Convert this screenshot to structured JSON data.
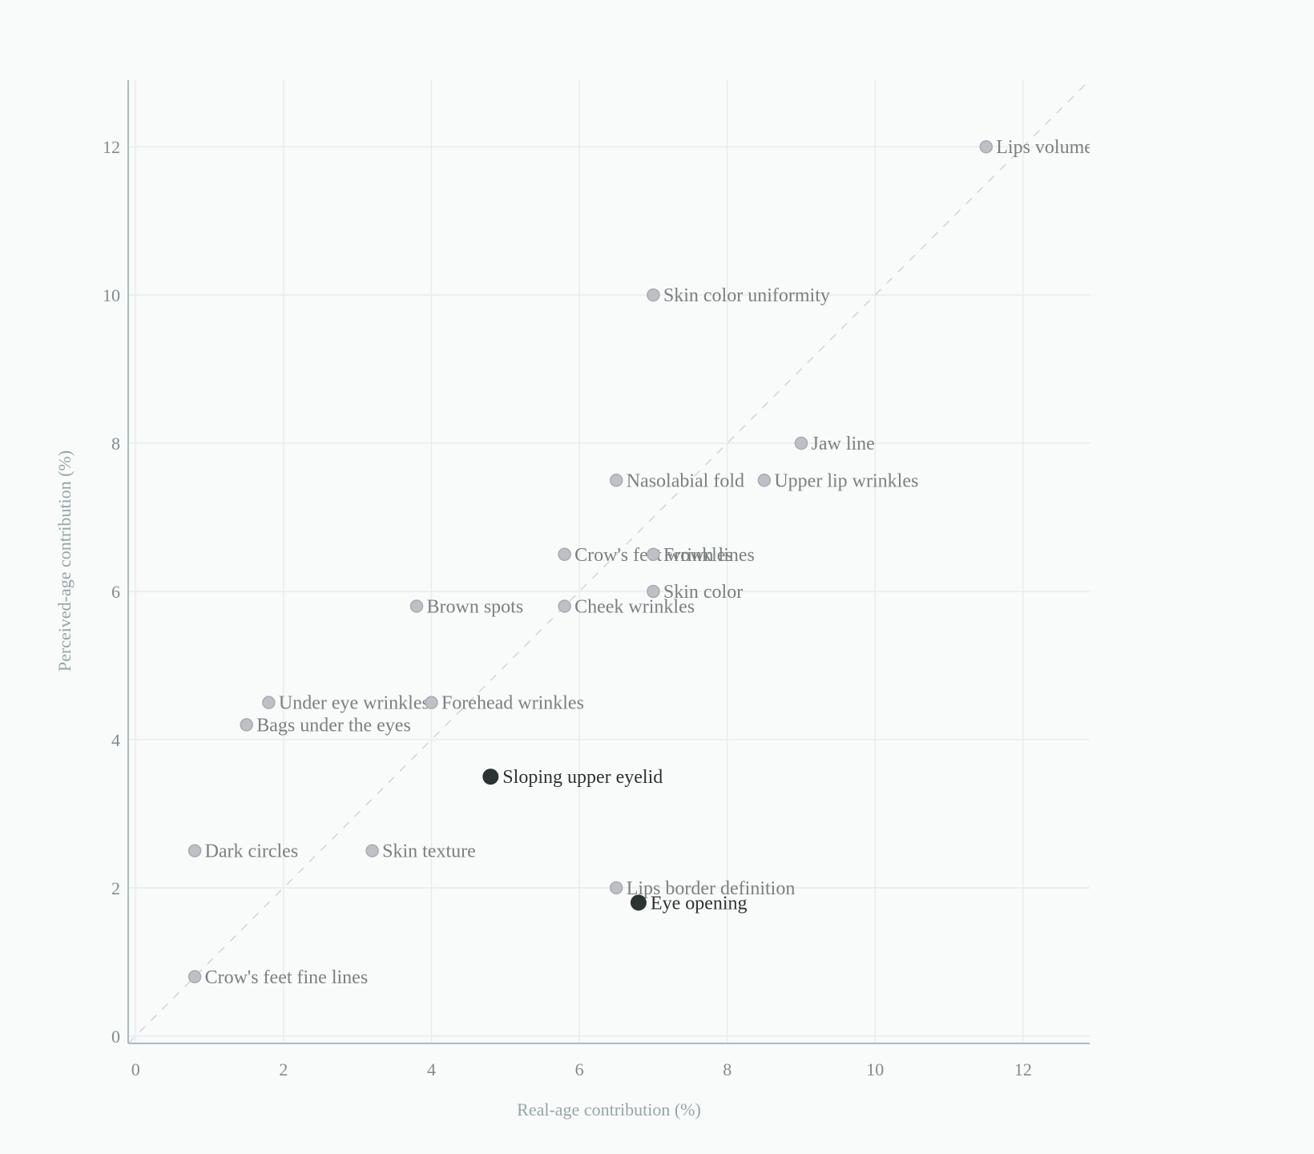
{
  "chart_data": {
    "type": "scatter",
    "xlabel": "Real-age contribution (%)",
    "ylabel": "Perceived-age contribution (%)",
    "xlim": [
      -0.1,
      12.9
    ],
    "ylim": [
      -0.1,
      12.9
    ],
    "xticks": [
      0,
      2,
      4,
      6,
      8,
      10,
      12
    ],
    "yticks": [
      0,
      2,
      4,
      6,
      8,
      10,
      12
    ],
    "grid": true,
    "diagonal_reference_line": "y = x, dashed",
    "colors": {
      "normal_point": "#bdc1c6",
      "highlight_point": "#2c3333",
      "normal_label": "#7a8080",
      "highlight_label": "#2c3333",
      "axis": "#a9bcc0",
      "grid": "#e8eced"
    },
    "points": [
      {
        "label": "Lips volume",
        "x": 11.5,
        "y": 12.0,
        "highlight": false
      },
      {
        "label": "Skin color uniformity",
        "x": 7.0,
        "y": 10.0,
        "highlight": false
      },
      {
        "label": "Jaw line",
        "x": 9.0,
        "y": 8.0,
        "highlight": false
      },
      {
        "label": "Nasolabial fold",
        "x": 6.5,
        "y": 7.5,
        "highlight": false
      },
      {
        "label": "Upper lip wrinkles",
        "x": 8.5,
        "y": 7.5,
        "highlight": false
      },
      {
        "label": "Crow's feet wrinkles",
        "x": 5.8,
        "y": 6.5,
        "highlight": false
      },
      {
        "label": "Frown lines",
        "x": 7.0,
        "y": 6.5,
        "highlight": false
      },
      {
        "label": "Skin color",
        "x": 7.0,
        "y": 6.0,
        "highlight": false
      },
      {
        "label": "Brown spots",
        "x": 3.8,
        "y": 5.8,
        "highlight": false
      },
      {
        "label": "Cheek wrinkles",
        "x": 5.8,
        "y": 5.8,
        "highlight": false
      },
      {
        "label": "Under eye wrinkles",
        "x": 1.8,
        "y": 4.5,
        "highlight": false
      },
      {
        "label": "Forehead wrinkles",
        "x": 4.0,
        "y": 4.5,
        "highlight": false
      },
      {
        "label": "Bags under the eyes",
        "x": 1.5,
        "y": 4.2,
        "highlight": false
      },
      {
        "label": "Sloping upper eyelid",
        "x": 4.8,
        "y": 3.5,
        "highlight": true
      },
      {
        "label": "Dark circles",
        "x": 0.8,
        "y": 2.5,
        "highlight": false
      },
      {
        "label": "Skin texture",
        "x": 3.2,
        "y": 2.5,
        "highlight": false
      },
      {
        "label": "Lips border definition",
        "x": 6.5,
        "y": 2.0,
        "highlight": false
      },
      {
        "label": "Eye opening",
        "x": 6.8,
        "y": 1.8,
        "highlight": true
      },
      {
        "label": "Crow's feet fine lines",
        "x": 0.8,
        "y": 0.8,
        "highlight": false
      }
    ]
  }
}
